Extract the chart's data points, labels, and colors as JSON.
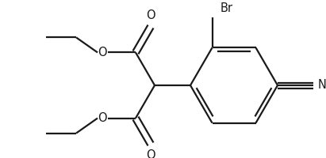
{
  "bg_color": "#ffffff",
  "line_color": "#1a1a1a",
  "line_width": 1.6,
  "font_size": 10.5,
  "figsize": [
    4.11,
    2.0
  ],
  "dpi": 100,
  "xlim": [
    0,
    411
  ],
  "ylim": [
    0,
    200
  ]
}
